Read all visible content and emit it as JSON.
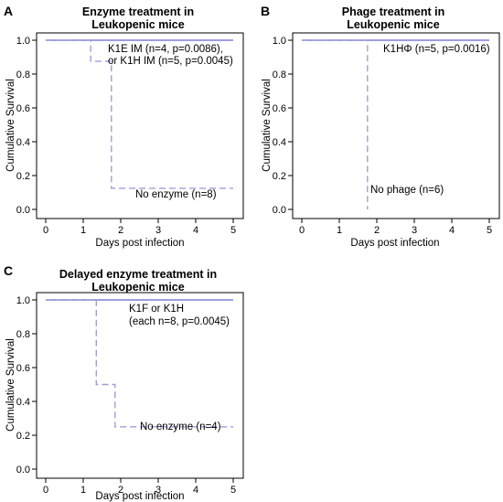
{
  "chart_data": [
    {
      "type": "line",
      "step": true,
      "panel_label": "A",
      "title": [
        "Enzyme treatment in",
        "Leukopenic mice"
      ],
      "xlabel": "Days post infection",
      "ylabel": "Cumulative Survival",
      "xlim": [
        0,
        5
      ],
      "ylim": [
        0,
        1
      ],
      "x_ticks": [
        "0",
        "1",
        "2",
        "3",
        "4",
        "5"
      ],
      "y_ticks": [
        "0.0",
        "0.2",
        "0.4",
        "0.6",
        "0.8",
        "1.0"
      ],
      "grid": false,
      "series": [
        {
          "style": "solid",
          "color": "#7f7fd9",
          "x": [
            0,
            5
          ],
          "y": [
            1.0,
            1.0
          ]
        },
        {
          "style": "dashed",
          "color": "#9f9fd8",
          "x": [
            0,
            1.2,
            1.2,
            1.75,
            1.75,
            5
          ],
          "y": [
            1.0,
            1.0,
            0.875,
            0.875,
            0.125,
            0.125
          ]
        }
      ],
      "annotations": [
        {
          "lines": [
            "K1E IM (n=4, p=0.0086),",
            "or K1H IM (n=5, p=0.0045)"
          ]
        },
        {
          "lines": [
            "No enzyme (n=8)"
          ]
        }
      ]
    },
    {
      "type": "line",
      "step": true,
      "panel_label": "B",
      "title": [
        "Phage treatment in",
        "Leukopenic mice"
      ],
      "xlabel": "Days post infection",
      "ylabel": "Cumulative Survival",
      "xlim": [
        0,
        5
      ],
      "ylim": [
        0,
        1
      ],
      "x_ticks": [
        "0",
        "1",
        "2",
        "3",
        "4",
        "5"
      ],
      "y_ticks": [
        "0.0",
        "0.2",
        "0.4",
        "0.6",
        "0.8",
        "1.0"
      ],
      "grid": false,
      "series": [
        {
          "style": "solid",
          "color": "#7f7fd9",
          "x": [
            0,
            5
          ],
          "y": [
            1.0,
            1.0
          ]
        },
        {
          "style": "dashed",
          "color": "#9f9fd8",
          "x": [
            0,
            1.75,
            1.75
          ],
          "y": [
            1.0,
            1.0,
            0.0
          ]
        }
      ],
      "annotations": [
        {
          "lines": [
            "K1HΦ (n=5, p=0.0016)"
          ]
        },
        {
          "lines": [
            "No phage (n=6)"
          ]
        }
      ]
    },
    {
      "type": "line",
      "step": true,
      "panel_label": "C",
      "title": [
        "Delayed enzyme treatment in",
        "Leukopenic mice"
      ],
      "xlabel": "Days post infection",
      "ylabel": "Cumulative Survival",
      "xlim": [
        0,
        5
      ],
      "ylim": [
        0,
        1
      ],
      "x_ticks": [
        "0",
        "1",
        "2",
        "3",
        "4",
        "5"
      ],
      "y_ticks": [
        "0.0",
        "0.2",
        "0.4",
        "0.6",
        "0.8",
        "1.0"
      ],
      "grid": false,
      "series": [
        {
          "style": "solid",
          "color": "#7f7fd9",
          "x": [
            0,
            5
          ],
          "y": [
            1.0,
            1.0
          ]
        },
        {
          "style": "dashed",
          "color": "#9f9fd8",
          "x": [
            0,
            1.35,
            1.35,
            1.85,
            1.85,
            5
          ],
          "y": [
            1.0,
            1.0,
            0.5,
            0.5,
            0.25,
            0.25
          ]
        }
      ],
      "annotations": [
        {
          "lines": [
            "K1F or K1H",
            "(each n=8, p=0.0045)"
          ]
        },
        {
          "lines": [
            "No enzyme (n=4)"
          ]
        }
      ]
    }
  ]
}
